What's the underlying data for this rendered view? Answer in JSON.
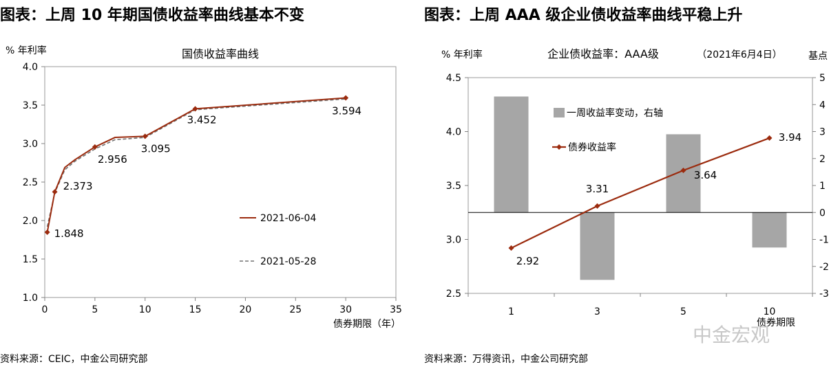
{
  "left_panel": {
    "heading": "图表：上周 10 年期国债收益率曲线基本不变",
    "source": "资料来源：CEIC，中金公司研究部"
  },
  "right_panel": {
    "heading": "图表：上周 AAA 级企业债收益率曲线平稳上升",
    "source": "资料来源：万得资讯，中金公司研究部"
  },
  "watermark": "中金宏观",
  "chart_data": [
    {
      "type": "line",
      "title": "国债收益率曲线",
      "ylabel": "% 年利率",
      "xlabel": "债券期限（年）",
      "xlim": [
        0,
        35
      ],
      "ylim": [
        1.0,
        4.0
      ],
      "x_ticks": [
        "0",
        "5",
        "10",
        "15",
        "20",
        "25",
        "30",
        "35"
      ],
      "y_ticks": [
        "1.0",
        "1.5",
        "2.0",
        "2.5",
        "3.0",
        "3.5",
        "4.0"
      ],
      "series": [
        {
          "name": "2021-06-04",
          "color": "#9b2b0e",
          "style": "solid",
          "marker": "diamond",
          "points": [
            [
              0.25,
              1.848
            ],
            [
              1,
              2.373
            ],
            [
              2,
              2.69
            ],
            [
              3,
              2.79
            ],
            [
              5,
              2.956
            ],
            [
              7,
              3.08
            ],
            [
              10,
              3.095
            ],
            [
              15,
              3.452
            ],
            [
              30,
              3.594
            ]
          ],
          "markers_at": [
            0.25,
            1,
            5,
            10,
            15,
            30
          ]
        },
        {
          "name": "2021-05-28",
          "color": "#707070",
          "style": "dashed",
          "points": [
            [
              0.25,
              1.92
            ],
            [
              1,
              2.36
            ],
            [
              2,
              2.66
            ],
            [
              3,
              2.77
            ],
            [
              5,
              2.93
            ],
            [
              7,
              3.05
            ],
            [
              10,
              3.08
            ],
            [
              15,
              3.44
            ],
            [
              30,
              3.58
            ]
          ]
        }
      ],
      "data_labels": [
        {
          "x": 0.25,
          "text": "1.848"
        },
        {
          "x": 1,
          "text": "2.373"
        },
        {
          "x": 5,
          "text": "2.956"
        },
        {
          "x": 10,
          "text": "3.095"
        },
        {
          "x": 15,
          "text": "3.452"
        },
        {
          "x": 30,
          "text": "3.594"
        }
      ],
      "legend_position": "right-middle"
    },
    {
      "type": "bar+line",
      "title": "企业债收益率：AAA级",
      "subtitle": "（2021年6月4日）",
      "categories": [
        "1",
        "3",
        "5",
        "10"
      ],
      "xlabel": "债券期限",
      "left_axis": {
        "label": "% 年利率",
        "lim": [
          2.5,
          4.5
        ],
        "ticks": [
          "2.5",
          "3.0",
          "3.5",
          "4.0",
          "4.5"
        ]
      },
      "right_axis": {
        "label": "基点",
        "lim": [
          -3,
          5
        ],
        "ticks": [
          "-3",
          "-2",
          "-1",
          "0",
          "1",
          "2",
          "3",
          "4",
          "5"
        ]
      },
      "series": [
        {
          "name": "一周收益率变动，右轴",
          "kind": "bar",
          "axis": "right",
          "color": "#a6a6a6",
          "values": [
            4.3,
            -2.5,
            2.9,
            -1.3
          ]
        },
        {
          "name": "债券收益率",
          "kind": "line",
          "axis": "left",
          "color": "#9b2b0e",
          "marker": "diamond",
          "values": [
            2.92,
            3.31,
            3.64,
            3.94
          ],
          "labels": [
            "2.92",
            "3.31",
            "3.64",
            "3.94"
          ]
        }
      ],
      "legend_position": "top-left"
    }
  ]
}
